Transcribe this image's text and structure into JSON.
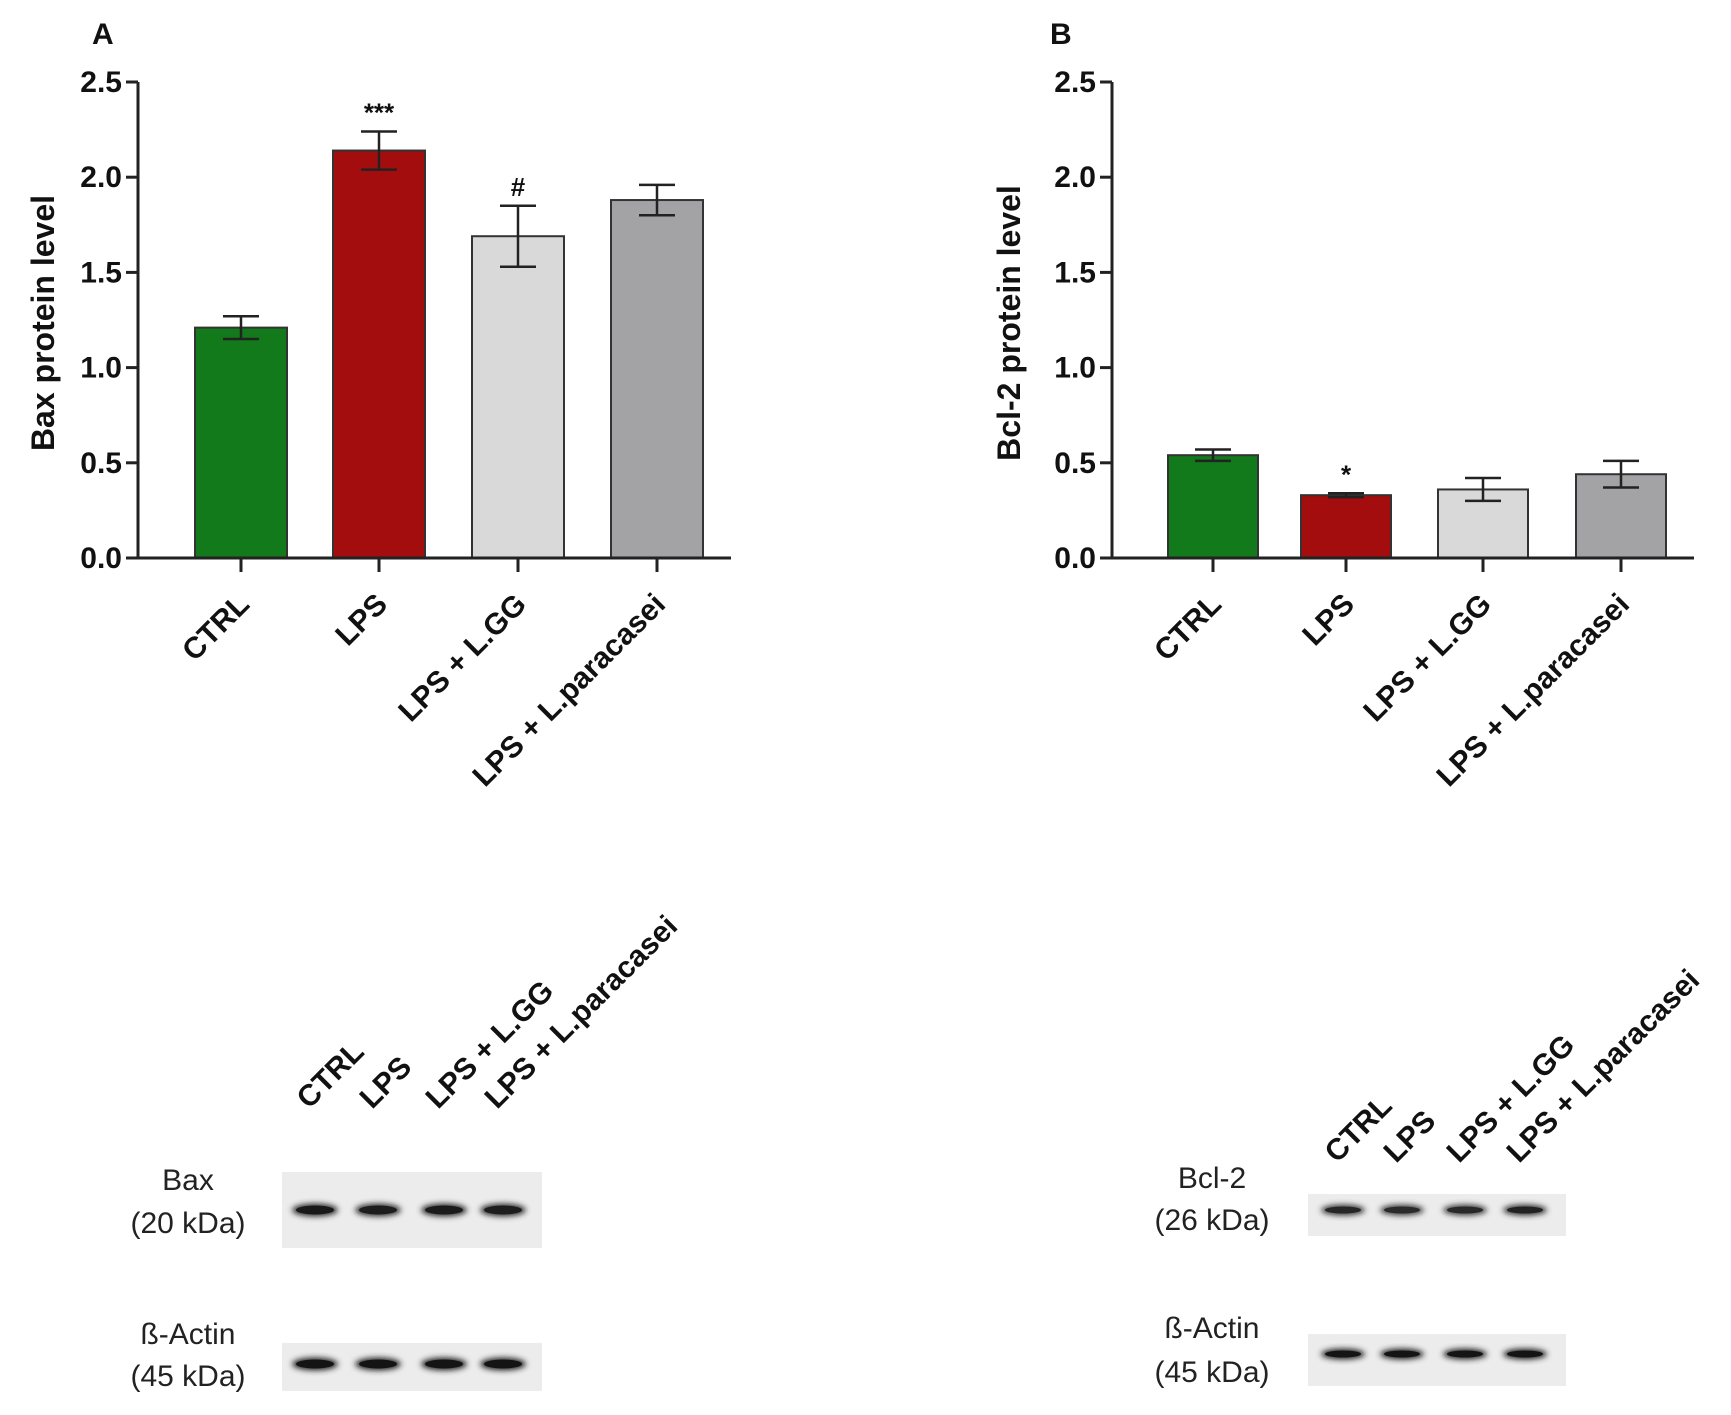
{
  "chart_data": [
    {
      "type": "bar",
      "panel": "A",
      "ylabel": "Bax protein level",
      "ylim": [
        0,
        2.5
      ],
      "yticks": [
        "0.0",
        "0.5",
        "1.0",
        "1.5",
        "2.0",
        "2.5"
      ],
      "categories": [
        "CTRL",
        "LPS",
        "LPS + L.GG",
        "LPS + L.paracasei"
      ],
      "values": [
        1.21,
        2.14,
        1.69,
        1.88
      ],
      "errors": [
        0.06,
        0.1,
        0.16,
        0.08
      ],
      "significance": [
        "",
        "***",
        "#",
        ""
      ],
      "colors": [
        "#137a1b",
        "#a30d0d",
        "#d9d9d9",
        "#a3a3a6"
      ]
    },
    {
      "type": "bar",
      "panel": "B",
      "ylabel": "Bcl-2 protein level",
      "ylim": [
        0,
        2.5
      ],
      "yticks": [
        "0.0",
        "0.5",
        "1.0",
        "1.5",
        "2.0",
        "2.5"
      ],
      "categories": [
        "CTRL",
        "LPS",
        "LPS + L.GG",
        "LPS + L.paracasei"
      ],
      "values": [
        0.54,
        0.33,
        0.36,
        0.44
      ],
      "errors": [
        0.03,
        0.01,
        0.06,
        0.07
      ],
      "significance": [
        "",
        "*",
        "",
        ""
      ],
      "colors": [
        "#137a1b",
        "#a30d0d",
        "#d9d9d9",
        "#a3a3a6"
      ]
    }
  ],
  "blots": [
    {
      "lanes": [
        "CTRL",
        "LPS",
        "LPS + L.GG",
        "LPS + L.paracasei"
      ],
      "rows": [
        {
          "name": "Bax",
          "size": "(20 kDa)",
          "intensities": [
            0.95,
            0.9,
            0.92,
            0.9
          ]
        },
        {
          "name": "ß-Actin",
          "size": "(45 kDa)",
          "intensities": [
            1.0,
            1.0,
            1.0,
            1.0
          ]
        }
      ]
    },
    {
      "lanes": [
        "CTRL",
        "LPS",
        "LPS + L.GG",
        "LPS + L.paracasei"
      ],
      "rows": [
        {
          "name": "Bcl-2",
          "size": "(26 kDa)",
          "intensities": [
            0.8,
            0.75,
            0.78,
            0.85
          ]
        },
        {
          "name": "ß-Actin",
          "size": "(45 kDa)",
          "intensities": [
            1.0,
            1.0,
            1.0,
            1.0
          ]
        }
      ]
    }
  ]
}
